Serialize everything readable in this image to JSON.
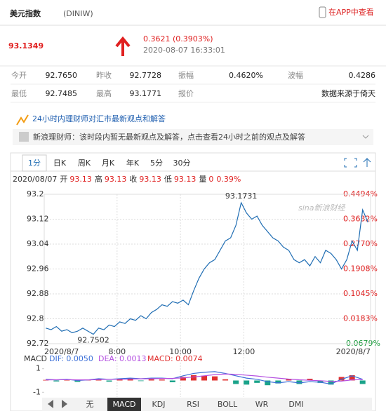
{
  "header": {
    "title": "美元指数",
    "code": "(DINIW)",
    "app_link": "在APP中查看",
    "price": "93.1349",
    "change": "0.3621 (0.3903%)",
    "time": "2020-08-07 16:33:01"
  },
  "stats": [
    [
      {
        "label": "今开",
        "value": "92.7650"
      },
      {
        "label": "昨收",
        "value": "92.7728"
      },
      {
        "label": "振幅",
        "value": "0.4620%"
      },
      {
        "label": "波幅",
        "value": "0.4286"
      }
    ],
    [
      {
        "label": "最低",
        "value": "92.7485"
      },
      {
        "label": "最高",
        "value": "93.1771"
      },
      {
        "label": "报价",
        "value": ""
      },
      {
        "label": "",
        "value": "数据来源于倚天"
      }
    ]
  ],
  "banner": {
    "title": "24小时内理财师对汇市最新观点和解答",
    "message": "新浪理财师：该时段内暂无最新观点及解答，点击查看24小时之前的观点及解答"
  },
  "tabs": [
    "1分",
    "日K",
    "周K",
    "月K",
    "年K",
    "5分",
    "30分"
  ],
  "info": {
    "date": "2020/08/07",
    "items": [
      {
        "label": "开",
        "value": "93.13"
      },
      {
        "label": "高",
        "value": "93.13"
      },
      {
        "label": "收",
        "value": "93.13"
      },
      {
        "label": "低",
        "value": "93.13"
      },
      {
        "label": "量",
        "value": "0"
      }
    ],
    "change": "0.39%"
  },
  "watermark": "sina新浪财经",
  "indicator_tabs": [
    "无",
    "MACD",
    "KDJ",
    "RSI",
    "BOLL",
    "WR",
    "DMI"
  ],
  "chart_data": [
    {
      "type": "line",
      "x": [
        345,
        355,
        365,
        375,
        385,
        395,
        405,
        415,
        425,
        435,
        445,
        455,
        465,
        475,
        485,
        495,
        505,
        515,
        525,
        535,
        545,
        555,
        565,
        575,
        585,
        595,
        605,
        615,
        625,
        635,
        645,
        655,
        665,
        675,
        685,
        695,
        705,
        715,
        725,
        735,
        745,
        755,
        765,
        775,
        785,
        795,
        805,
        815,
        825,
        835,
        845,
        855,
        865,
        875,
        885,
        895,
        905,
        915,
        925,
        935,
        945,
        955
      ],
      "series": [
        {
          "color": "#1f6db3",
          "values": [
            92.77,
            92.765,
            92.775,
            92.76,
            92.765,
            92.755,
            92.76,
            92.77,
            92.76,
            92.7502,
            92.77,
            92.765,
            92.78,
            92.775,
            92.79,
            92.785,
            92.8,
            92.795,
            92.81,
            92.8,
            92.82,
            92.83,
            92.845,
            92.84,
            92.855,
            92.85,
            92.86,
            92.845,
            92.89,
            92.93,
            92.96,
            92.98,
            92.99,
            93.02,
            93.05,
            93.06,
            93.1,
            93.1731,
            93.14,
            93.12,
            93.13,
            93.1,
            93.08,
            93.06,
            93.05,
            93.03,
            93.02,
            92.99,
            92.98,
            92.99,
            92.97,
            93.0,
            92.98,
            93.02,
            93.01,
            92.99,
            92.96,
            92.99,
            93.05,
            93.02,
            93.15,
            93.11
          ]
        }
      ],
      "xlim": [
        342,
        960
      ],
      "xticks": [
        {
          "value": 342,
          "label": "2020/8/7"
        },
        {
          "value": 480,
          "label": "8:00"
        },
        {
          "value": 600,
          "label": "10:00"
        },
        {
          "value": 720,
          "label": "12:00"
        },
        {
          "value": 960,
          "label": "2020/8/7"
        }
      ],
      "ylim": [
        92.72,
        93.2
      ],
      "yticks": [
        93.2,
        93.12,
        93.04,
        92.96,
        92.88,
        92.8,
        92.72
      ],
      "y2lim": [
        -0.0679,
        0.4494
      ],
      "y2ticks": [
        {
          "value": 0.4494,
          "label": "0.4494%"
        },
        {
          "value": 0.3632,
          "label": "0.3632%"
        },
        {
          "value": 0.277,
          "label": "0.2770%"
        },
        {
          "value": 0.1908,
          "label": "0.1908%"
        },
        {
          "value": 0.1045,
          "label": "0.1045%"
        },
        {
          "value": 0.0183,
          "label": "0.0183%"
        },
        {
          "value": -0.0679,
          "label": "-0.0679%"
        }
      ],
      "grid": true,
      "up_color": "#e02020",
      "down_color": "#1a9a3c",
      "annotations": [
        {
          "label": "93.1731",
          "x": 715,
          "y": 93.1731
        },
        {
          "label": "92.7502",
          "x": 435,
          "y": 92.7502
        }
      ]
    },
    {
      "type": "macd",
      "title": "MACD",
      "legend": [
        "DIF: 0.0050",
        "DEA: 0.0013",
        "MACD: 0.0074"
      ],
      "x": [
        345,
        365,
        385,
        405,
        425,
        445,
        465,
        485,
        505,
        525,
        545,
        565,
        585,
        605,
        625,
        645,
        665,
        685,
        705,
        725,
        745,
        765,
        785,
        805,
        825,
        845,
        865,
        885,
        905,
        925,
        945
      ],
      "series": [
        {
          "color": "#3b6fd8",
          "values": [
            0.1,
            0.05,
            0.1,
            0.0,
            0.05,
            0.15,
            0.1,
            0.15,
            0.2,
            0.15,
            0.2,
            0.2,
            0.15,
            0.4,
            0.6,
            0.7,
            0.75,
            0.6,
            0.4,
            0.2,
            0.1,
            -0.1,
            -0.2,
            -0.1,
            -0.2,
            -0.1,
            -0.15,
            -0.3,
            0.1,
            0.4,
            0.1
          ]
        },
        {
          "color": "#b44fe0",
          "values": [
            0.05,
            0.06,
            0.07,
            0.05,
            0.05,
            0.08,
            0.1,
            0.1,
            0.12,
            0.14,
            0.15,
            0.17,
            0.18,
            0.22,
            0.3,
            0.4,
            0.5,
            0.55,
            0.52,
            0.45,
            0.38,
            0.28,
            0.2,
            0.12,
            0.06,
            0.02,
            -0.02,
            -0.08,
            -0.05,
            0.05,
            0.08
          ]
        },
        {
          "color": "#e0302f",
          "down_color": "#1aa38a",
          "values": [
            0.05,
            -0.08,
            0.1,
            -0.12,
            0.08,
            0.15,
            -0.1,
            0.12,
            0.18,
            -0.05,
            0.1,
            0.08,
            -0.15,
            0.3,
            0.45,
            0.4,
            0.35,
            0.1,
            -0.3,
            -0.35,
            -0.2,
            -0.4,
            -0.25,
            0.1,
            -0.3,
            0.15,
            -0.2,
            -0.35,
            0.3,
            0.45,
            -0.3
          ]
        }
      ],
      "xlim": [
        342,
        960
      ],
      "ylim": [
        -1.4,
        1.4
      ],
      "yticks": [
        1,
        -1
      ]
    }
  ]
}
